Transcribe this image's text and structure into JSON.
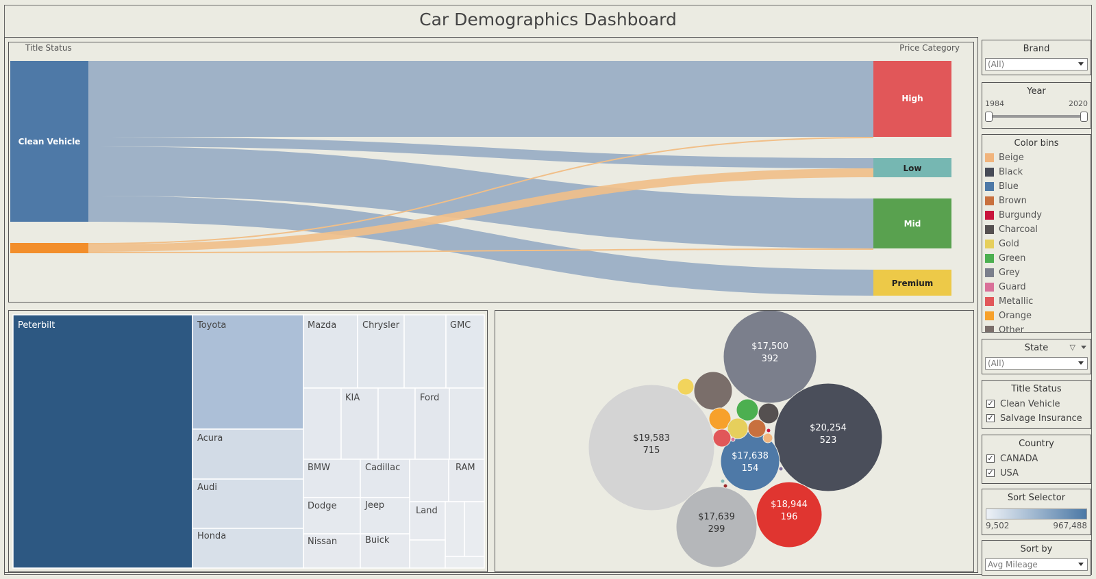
{
  "title": "Car Demographics Dashboard",
  "sankey": {
    "left_header": "Title Status",
    "right_header": "Price Category",
    "source_label": "Clean Vehicle",
    "targets": [
      {
        "label": "High",
        "color": "#e15759"
      },
      {
        "label": "Low",
        "color": "#76b7b2"
      },
      {
        "label": "Mid",
        "color": "#59a14f"
      },
      {
        "label": "Premium",
        "color": "#edc948"
      }
    ],
    "colors": {
      "clean": "#4e79a7",
      "flow": "#9fb2c7",
      "salvage": "#f28e2b",
      "salvage_flow": "#f1bf88"
    }
  },
  "treemap": {
    "tiles": [
      "Peterbilt",
      "Toyota",
      "Acura",
      "Audi",
      "Honda",
      "Mazda",
      "Chrysler",
      "GMC",
      "KIA",
      "Ford",
      "BMW",
      "Cadillac",
      "RAM",
      "Dodge",
      "Jeep",
      "Land",
      "Nissan",
      "Buick"
    ]
  },
  "bubbles": [
    {
      "price": "$17,500",
      "count": "392",
      "color": "#7b7f8c"
    },
    {
      "price": "$19,583",
      "count": "715",
      "color": "#d4d4d4"
    },
    {
      "price": "$20,254",
      "count": "523",
      "color": "#4a4e5a"
    },
    {
      "price": "$17,638",
      "count": "154",
      "color": "#4e79a7"
    },
    {
      "price": "$18,944",
      "count": "196",
      "color": "#e03530"
    },
    {
      "price": "$17,639",
      "count": "299",
      "color": "#b5b7ba"
    }
  ],
  "filters": {
    "brand": {
      "title": "Brand",
      "value": "(All)"
    },
    "year": {
      "title": "Year",
      "min": "1984",
      "max": "2020"
    },
    "color_bins": {
      "title": "Color bins",
      "items": [
        {
          "label": "Beige",
          "color": "#f1b47c"
        },
        {
          "label": "Black",
          "color": "#474b57"
        },
        {
          "label": "Blue",
          "color": "#4e79a7"
        },
        {
          "label": "Brown",
          "color": "#c8703e"
        },
        {
          "label": "Burgundy",
          "color": "#c8143c"
        },
        {
          "label": "Charcoal",
          "color": "#555050"
        },
        {
          "label": "Gold",
          "color": "#e6cf5c"
        },
        {
          "label": "Green",
          "color": "#4caf50"
        },
        {
          "label": "Grey",
          "color": "#7b7f8c"
        },
        {
          "label": "Guard",
          "color": "#d97099"
        },
        {
          "label": "Metallic",
          "color": "#e15759"
        },
        {
          "label": "Orange",
          "color": "#f7a12b"
        },
        {
          "label": "Other",
          "color": "#7a6e6a"
        }
      ]
    },
    "state": {
      "title": "State",
      "value": "(All)"
    },
    "title_status": {
      "title": "Title Status",
      "options": [
        "Clean Vehicle",
        "Salvage Insurance"
      ]
    },
    "country": {
      "title": "Country",
      "options": [
        "CANADA",
        "USA"
      ]
    },
    "sort_selector": {
      "title": "Sort Selector",
      "min": "9,502",
      "max": "967,488"
    },
    "sort_by": {
      "title": "Sort by",
      "value": "Avg Mileage"
    }
  }
}
